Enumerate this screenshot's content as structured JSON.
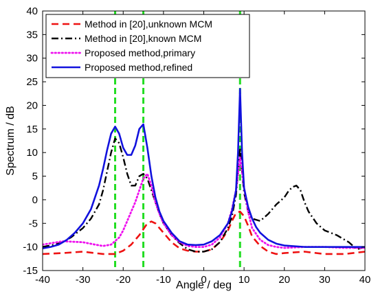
{
  "chart_data": {
    "type": "line",
    "title": "",
    "xlabel": "Angle / deg",
    "ylabel": "Spectrum / dB",
    "xlim": [
      -40,
      40
    ],
    "ylim": [
      -15,
      40
    ],
    "xticks": [
      -40,
      -30,
      -20,
      -10,
      0,
      10,
      20,
      30,
      40
    ],
    "yticks": [
      -15,
      -10,
      -5,
      0,
      5,
      10,
      15,
      20,
      25,
      30,
      35,
      40
    ],
    "grid": false,
    "legend_position": "top-left",
    "true_angles": [
      -22,
      -15,
      9
    ],
    "true_angle_color": "#22dd22",
    "series": [
      {
        "name": "Method in [20],unknown MCM",
        "color": "#ee1111",
        "style": "dashed",
        "x": [
          -40,
          -35,
          -30,
          -25,
          -22,
          -20,
          -18,
          -16,
          -14,
          -13,
          -12,
          -10,
          -8,
          -6,
          -4,
          -2,
          0,
          2,
          4,
          6,
          7,
          8,
          9,
          10,
          11,
          12,
          14,
          16,
          18,
          20,
          25,
          30,
          35,
          40
        ],
        "y": [
          -11.5,
          -11.3,
          -11.0,
          -11.5,
          -11.5,
          -10.8,
          -9.5,
          -7.5,
          -5.0,
          -4.6,
          -5.0,
          -7.0,
          -9.0,
          -10.3,
          -10.8,
          -11.0,
          -11.0,
          -10.5,
          -9.0,
          -6.5,
          -4.5,
          -2.8,
          -2.5,
          -3.5,
          -5.5,
          -7.8,
          -9.8,
          -11.0,
          -11.5,
          -11.3,
          -11.0,
          -11.5,
          -11.5,
          -11.0
        ]
      },
      {
        "name": "Method in [20],known MCM",
        "color": "#000000",
        "style": "dashdot",
        "x": [
          -40,
          -37,
          -35,
          -33,
          -30,
          -28,
          -26,
          -25,
          -24,
          -23,
          -22,
          -21,
          -20,
          -19,
          -18,
          -17,
          -16,
          -15,
          -14,
          -13,
          -12,
          -11,
          -10,
          -8,
          -6,
          -4,
          -2,
          0,
          2,
          4,
          6,
          7,
          8,
          8.5,
          9,
          9.5,
          10,
          11,
          12,
          14,
          16,
          18,
          20,
          21,
          22,
          23,
          24,
          25,
          26,
          28,
          30,
          33,
          36,
          38,
          40
        ],
        "y": [
          -10.0,
          -9.5,
          -9.0,
          -8.0,
          -6.0,
          -4.0,
          -1.0,
          2.0,
          6.0,
          10.0,
          13.0,
          12.0,
          9.0,
          5.5,
          3.0,
          3.0,
          5.0,
          5.5,
          4.5,
          2.0,
          -0.5,
          -3.0,
          -5.0,
          -7.5,
          -9.2,
          -10.5,
          -11.0,
          -11.0,
          -10.5,
          -9.0,
          -6.0,
          -3.5,
          1.0,
          6.0,
          11.0,
          6.0,
          1.5,
          -2.5,
          -4.0,
          -4.5,
          -3.0,
          -1.0,
          0.5,
          1.8,
          2.7,
          3.0,
          2.0,
          -0.5,
          -2.5,
          -5.0,
          -6.5,
          -7.5,
          -9.0,
          -10.5,
          -10.0
        ]
      },
      {
        "name": "Proposed method,primary",
        "color": "#ee11ee",
        "style": "dotted",
        "x": [
          -40,
          -35,
          -30,
          -27,
          -25,
          -23,
          -21,
          -20,
          -19,
          -18,
          -17,
          -16,
          -15,
          -14,
          -13,
          -12,
          -11,
          -10,
          -8,
          -6,
          -4,
          -2,
          0,
          2,
          4,
          6,
          7,
          8,
          9,
          10,
          11,
          12,
          14,
          16,
          18,
          20,
          25,
          30,
          35,
          40
        ],
        "y": [
          -9.5,
          -8.8,
          -9.0,
          -9.5,
          -9.8,
          -9.5,
          -8.0,
          -6.5,
          -4.5,
          -2.5,
          -0.5,
          2.0,
          4.5,
          5.5,
          3.0,
          -0.5,
          -3.0,
          -5.0,
          -7.5,
          -9.0,
          -9.8,
          -10.0,
          -10.0,
          -9.5,
          -8.0,
          -5.0,
          -2.0,
          2.0,
          9.0,
          2.5,
          -2.5,
          -6.0,
          -8.5,
          -9.6,
          -10.0,
          -10.2,
          -10.0,
          -10.0,
          -10.2,
          -10.2
        ]
      },
      {
        "name": "Proposed method,refined",
        "color": "#1111dd",
        "style": "solid",
        "x": [
          -40,
          -38,
          -36,
          -34,
          -32,
          -30,
          -28,
          -26,
          -25,
          -24,
          -23,
          -22,
          -21,
          -20,
          -19,
          -18,
          -17,
          -16,
          -15,
          -14,
          -13,
          -12,
          -11,
          -10,
          -8,
          -6,
          -4,
          -2,
          0,
          2,
          4,
          6,
          7,
          8,
          8.5,
          9,
          9.5,
          10,
          11,
          12,
          13,
          14,
          16,
          18,
          20,
          25,
          30,
          35,
          40
        ],
        "y": [
          -10.3,
          -10.0,
          -9.5,
          -8.5,
          -7.0,
          -5.0,
          -2.0,
          3.0,
          6.5,
          10.5,
          14.0,
          15.5,
          14.0,
          11.0,
          9.5,
          9.5,
          11.5,
          15.0,
          16.0,
          11.0,
          5.0,
          0.5,
          -2.5,
          -4.5,
          -7.0,
          -8.8,
          -9.5,
          -9.6,
          -9.5,
          -8.8,
          -7.5,
          -5.0,
          -2.5,
          2.0,
          10.0,
          23.5,
          10.0,
          2.5,
          -1.5,
          -4.0,
          -5.8,
          -7.0,
          -8.5,
          -9.3,
          -9.7,
          -10.0,
          -10.0,
          -10.0,
          -10.0
        ]
      }
    ]
  }
}
